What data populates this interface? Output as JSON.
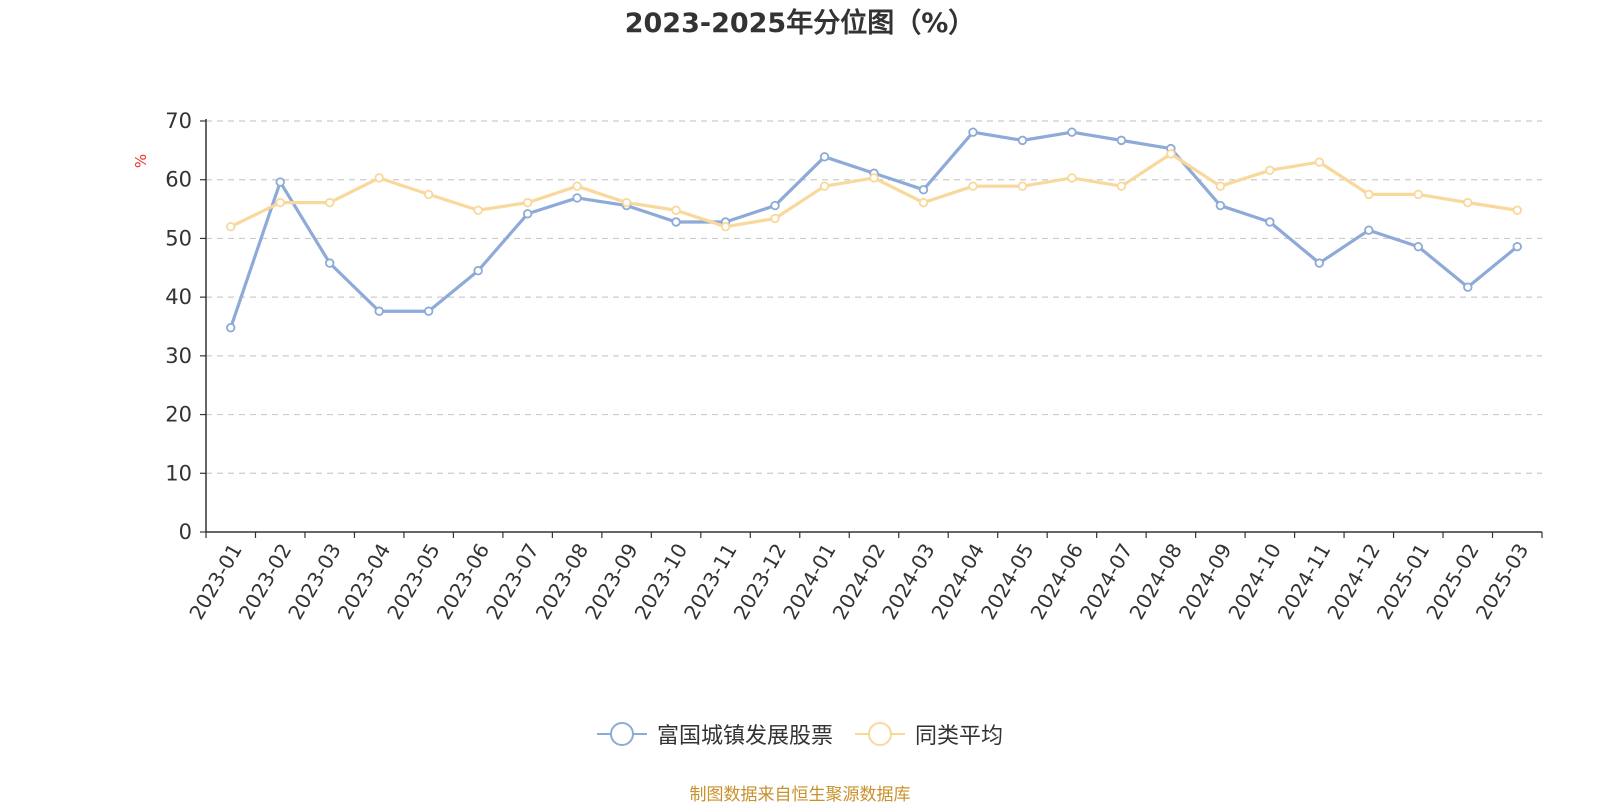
{
  "chart_data": {
    "type": "line",
    "title": "2023-2025年分位图（%）",
    "ylabel": "%",
    "xlabel": "",
    "ylim": [
      0,
      70
    ],
    "yticks": [
      0,
      10,
      20,
      30,
      40,
      50,
      60,
      70
    ],
    "grid": true,
    "legend_position": "bottom-center",
    "categories": [
      "2023-01",
      "2023-02",
      "2023-03",
      "2023-04",
      "2023-05",
      "2023-06",
      "2023-07",
      "2023-08",
      "2023-09",
      "2023-10",
      "2023-11",
      "2023-12",
      "2024-01",
      "2024-02",
      "2024-03",
      "2024-04",
      "2024-05",
      "2024-06",
      "2024-07",
      "2024-08",
      "2024-09",
      "2024-10",
      "2024-11",
      "2024-12",
      "2025-01",
      "2025-02",
      "2025-03"
    ],
    "series": [
      {
        "name": "富国城镇发展股票",
        "color": "#8eaad8",
        "values": [
          34.8,
          59.6,
          45.8,
          37.6,
          37.6,
          44.5,
          54.2,
          56.9,
          55.6,
          52.8,
          52.8,
          55.6,
          63.9,
          61.1,
          58.3,
          68.1,
          66.7,
          68.1,
          66.7,
          65.3,
          55.6,
          52.8,
          45.8,
          51.4,
          48.6,
          41.7,
          48.6
        ]
      },
      {
        "name": "同类平均",
        "color": "#f9d89c",
        "values": [
          52.0,
          56.1,
          56.1,
          60.3,
          57.5,
          54.8,
          56.1,
          58.9,
          56.1,
          54.8,
          52.0,
          53.4,
          58.9,
          60.3,
          56.1,
          58.9,
          58.9,
          60.3,
          58.9,
          64.4,
          58.9,
          61.6,
          63.0,
          57.5,
          57.5,
          56.1,
          54.8
        ]
      }
    ]
  },
  "footer": {
    "source": "制图数据来自恒生聚源数据库"
  },
  "colors": {
    "axis": "#333333",
    "grid": "#cccccc",
    "ylabel": "#e8312a",
    "source": "#c8912c"
  }
}
